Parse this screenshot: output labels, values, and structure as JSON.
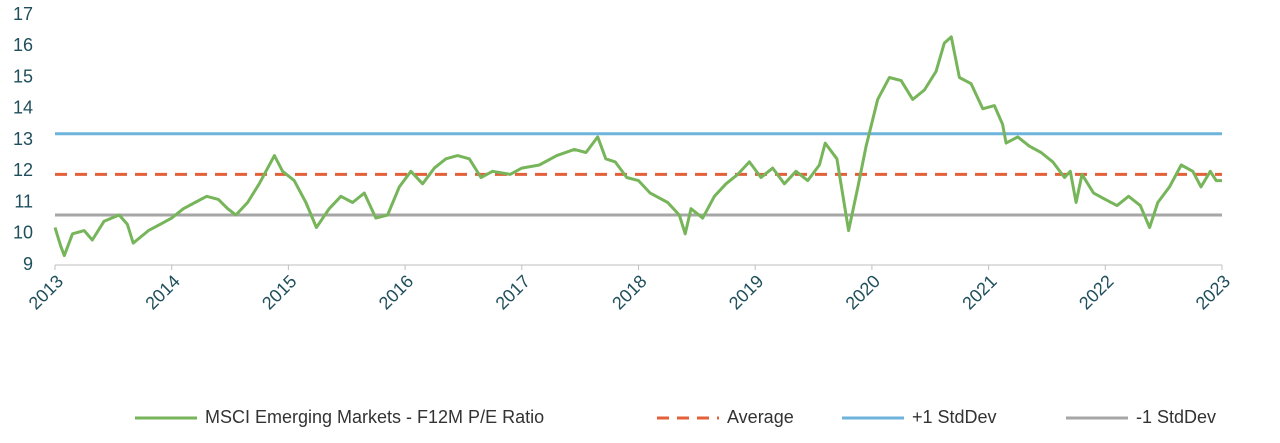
{
  "chart_data": {
    "type": "line",
    "xlim": [
      2013,
      2023
    ],
    "xticks": [
      2013,
      2014,
      2015,
      2016,
      2017,
      2018,
      2019,
      2020,
      2021,
      2022,
      2023
    ],
    "ylim": [
      9,
      17
    ],
    "yticks": [
      9,
      10,
      11,
      12,
      13,
      14,
      15,
      16,
      17
    ],
    "grid": false,
    "legend": "bottom",
    "series": [
      {
        "name": "MSCI Emerging Markets - F12M P/E Ratio",
        "color": "#77b55a",
        "dash": false,
        "x": [
          2013.0,
          2013.05,
          2013.08,
          2013.15,
          2013.25,
          2013.32,
          2013.42,
          2013.55,
          2013.62,
          2013.67,
          2013.8,
          2013.9,
          2014.0,
          2014.1,
          2014.2,
          2014.3,
          2014.4,
          2014.48,
          2014.55,
          2014.65,
          2014.75,
          2014.88,
          2014.95,
          2015.05,
          2015.15,
          2015.24,
          2015.35,
          2015.45,
          2015.55,
          2015.65,
          2015.75,
          2015.85,
          2015.95,
          2016.05,
          2016.15,
          2016.25,
          2016.35,
          2016.45,
          2016.55,
          2016.65,
          2016.75,
          2016.9,
          2017.0,
          2017.15,
          2017.3,
          2017.45,
          2017.55,
          2017.65,
          2017.72,
          2017.8,
          2017.9,
          2018.0,
          2018.1,
          2018.25,
          2018.35,
          2018.4,
          2018.45,
          2018.55,
          2018.65,
          2018.75,
          2018.85,
          2018.95,
          2019.05,
          2019.15,
          2019.25,
          2019.35,
          2019.45,
          2019.55,
          2019.6,
          2019.7,
          2019.8,
          2019.88,
          2019.95,
          2020.05,
          2020.15,
          2020.25,
          2020.35,
          2020.45,
          2020.55,
          2020.62,
          2020.68,
          2020.75,
          2020.85,
          2020.95,
          2021.05,
          2021.12,
          2021.15,
          2021.25,
          2021.35,
          2021.45,
          2021.55,
          2021.65,
          2021.7,
          2021.75,
          2021.8,
          2021.9,
          2022.0,
          2022.1,
          2022.2,
          2022.3,
          2022.38,
          2022.45,
          2022.55,
          2022.65,
          2022.75,
          2022.82,
          2022.9,
          2022.95,
          2023.0
        ],
        "values": [
          10.2,
          9.6,
          9.3,
          10.0,
          10.1,
          9.8,
          10.4,
          10.6,
          10.3,
          9.7,
          10.1,
          10.3,
          10.5,
          10.8,
          11.0,
          11.2,
          11.1,
          10.8,
          10.6,
          11.0,
          11.6,
          12.5,
          12.0,
          11.7,
          11.0,
          10.2,
          10.8,
          11.2,
          11.0,
          11.3,
          10.5,
          10.6,
          11.5,
          12.0,
          11.6,
          12.1,
          12.4,
          12.5,
          12.4,
          11.8,
          12.0,
          11.9,
          12.1,
          12.2,
          12.5,
          12.7,
          12.6,
          13.1,
          12.4,
          12.3,
          11.8,
          11.7,
          11.3,
          11.0,
          10.6,
          10.0,
          10.8,
          10.5,
          11.2,
          11.6,
          11.9,
          12.3,
          11.8,
          12.1,
          11.6,
          12.0,
          11.7,
          12.2,
          12.9,
          12.4,
          10.1,
          11.5,
          12.8,
          14.3,
          15.0,
          14.9,
          14.3,
          14.6,
          15.2,
          16.1,
          16.3,
          15.0,
          14.8,
          14.0,
          14.1,
          13.5,
          12.9,
          13.1,
          12.8,
          12.6,
          12.3,
          11.8,
          12.0,
          11.0,
          11.9,
          11.3,
          11.1,
          10.9,
          11.2,
          10.9,
          10.2,
          11.0,
          11.5,
          12.2,
          12.0,
          11.5,
          12.0,
          11.7,
          11.7
        ]
      },
      {
        "name": "Average",
        "color": "#e2613a",
        "dash": true,
        "x": [
          2013,
          2023
        ],
        "values": [
          11.9,
          11.9
        ]
      },
      {
        "name": "+1 StdDev",
        "color": "#6db3dc",
        "dash": false,
        "x": [
          2013,
          2023
        ],
        "values": [
          13.2,
          13.2
        ]
      },
      {
        "name": "-1 StdDev",
        "color": "#a6a6a6",
        "dash": false,
        "x": [
          2013,
          2023
        ],
        "values": [
          10.6,
          10.6
        ]
      }
    ]
  }
}
